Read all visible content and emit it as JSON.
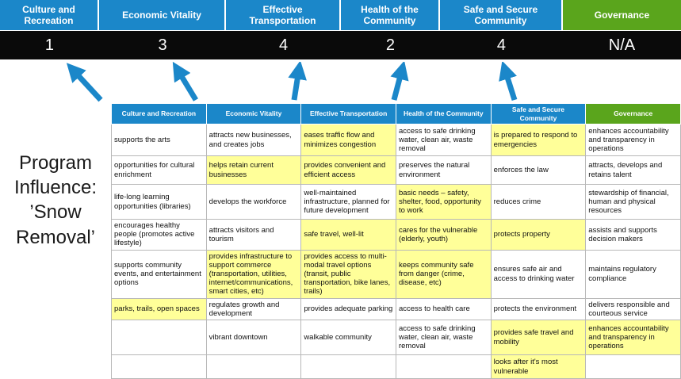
{
  "title": "Program Influence: ’Snow Removal’",
  "colors": {
    "blue": "#1b87c9",
    "green": "#5aa51c",
    "highlight": "#ffff99",
    "score_bg": "#0a0a0a"
  },
  "scoreboard": {
    "columns": [
      {
        "label": "Culture and Recreation",
        "score": "1",
        "accent": "blue"
      },
      {
        "label": "Economic Vitality",
        "score": "3",
        "accent": "blue"
      },
      {
        "label": "Effective Transportation",
        "score": "4",
        "accent": "blue"
      },
      {
        "label": "Health of the Community",
        "score": "2",
        "accent": "blue"
      },
      {
        "label": "Safe and Secure Community",
        "score": "4",
        "accent": "blue"
      },
      {
        "label": "Governance",
        "score": "N/A",
        "accent": "green"
      }
    ]
  },
  "matrix": {
    "headers": [
      {
        "label": "Culture and Recreation",
        "accent": "blue"
      },
      {
        "label": "Economic Vitality",
        "accent": "blue"
      },
      {
        "label": "Effective Transportation",
        "accent": "blue"
      },
      {
        "label": "Health of the Community",
        "accent": "blue"
      },
      {
        "label": "Safe and Secure Community",
        "accent": "blue"
      },
      {
        "label": "Governance",
        "accent": "green"
      }
    ],
    "rows": [
      {
        "cells": [
          {
            "text": "supports the arts",
            "highlight": false
          },
          {
            "text": "attracts new businesses, and creates jobs",
            "highlight": false
          },
          {
            "text": "eases traffic flow and minimizes congestion",
            "highlight": true
          },
          {
            "text": "access to safe drinking water, clean air, waste removal",
            "highlight": false
          },
          {
            "text": "is prepared to respond to emergencies",
            "highlight": true
          },
          {
            "text": "enhances accountability and transparency in operations",
            "highlight": false
          }
        ]
      },
      {
        "cells": [
          {
            "text": "opportunities for cultural enrichment",
            "highlight": false
          },
          {
            "text": "helps retain current businesses",
            "highlight": true
          },
          {
            "text": "provides convenient and efficient access",
            "highlight": true
          },
          {
            "text": "preserves the natural environment",
            "highlight": false
          },
          {
            "text": "enforces the law",
            "highlight": false
          },
          {
            "text": "attracts, develops and retains talent",
            "highlight": false
          }
        ]
      },
      {
        "cells": [
          {
            "text": "life-long learning opportunities (libraries)",
            "highlight": false
          },
          {
            "text": "develops the workforce",
            "highlight": false
          },
          {
            "text": "well-maintained infrastructure, planned for future development",
            "highlight": false
          },
          {
            "text": "basic needs – safety, shelter, food, opportunity to work",
            "highlight": true
          },
          {
            "text": "reduces crime",
            "highlight": false
          },
          {
            "text": "stewardship of financial, human and physical resources",
            "highlight": false
          }
        ]
      },
      {
        "cells": [
          {
            "text": "encourages healthy people (promotes active lifestyle)",
            "highlight": false
          },
          {
            "text": "attracts visitors and tourism",
            "highlight": false
          },
          {
            "text": "safe travel, well-lit",
            "highlight": true
          },
          {
            "text": "cares for the vulnerable (elderly, youth)",
            "highlight": true
          },
          {
            "text": "protects property",
            "highlight": true
          },
          {
            "text": "assists and supports decision makers",
            "highlight": false
          }
        ]
      },
      {
        "cells": [
          {
            "text": "supports community events, and entertainment options",
            "highlight": false
          },
          {
            "text": "provides infrastructure to support commerce (transportation, utilities, internet/communications, smart cities, etc)",
            "highlight": true
          },
          {
            "text": "provides access to multi-modal travel options (transit, public transportation, bike lanes, trails)",
            "highlight": true
          },
          {
            "text": "keeps community safe from danger (crime, disease, etc)",
            "highlight": true
          },
          {
            "text": "ensures safe air and access to drinking water",
            "highlight": false
          },
          {
            "text": "maintains regulatory compliance",
            "highlight": false
          }
        ]
      },
      {
        "cells": [
          {
            "text": "parks, trails, open spaces",
            "highlight": true
          },
          {
            "text": "regulates growth and development",
            "highlight": false
          },
          {
            "text": "provides adequate parking",
            "highlight": false
          },
          {
            "text": "access to health care",
            "highlight": false
          },
          {
            "text": "protects the environment",
            "highlight": false
          },
          {
            "text": "delivers responsible and courteous service",
            "highlight": false
          }
        ]
      },
      {
        "cells": [
          {
            "text": "",
            "highlight": false
          },
          {
            "text": "vibrant downtown",
            "highlight": false
          },
          {
            "text": "walkable community",
            "highlight": false
          },
          {
            "text": "access to safe drinking water, clean air, waste removal",
            "highlight": false
          },
          {
            "text": "provides safe travel and mobility",
            "highlight": true
          },
          {
            "text": "enhances accountability and transparency in operations",
            "highlight": true
          }
        ]
      },
      {
        "cells": [
          {
            "text": "",
            "highlight": false
          },
          {
            "text": "",
            "highlight": false
          },
          {
            "text": "",
            "highlight": false
          },
          {
            "text": "",
            "highlight": false
          },
          {
            "text": "looks after it's most vulnerable",
            "highlight": true
          },
          {
            "text": "",
            "highlight": false
          }
        ]
      }
    ]
  }
}
